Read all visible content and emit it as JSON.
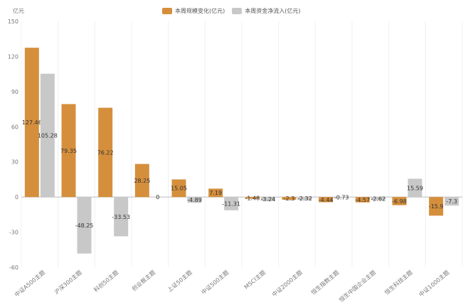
{
  "chart_data": {
    "type": "bar",
    "ylabel": "亿元",
    "ylim": [
      -60,
      150
    ],
    "yticks": [
      150,
      120,
      90,
      60,
      30,
      0,
      -30,
      -60
    ],
    "grid": "vertical",
    "legend_position": "top",
    "categories": [
      "中证A500主题",
      "沪深300主题",
      "科创50主题",
      "创业板主题",
      "上证50主题",
      "中证500主题",
      "MSCI主题",
      "中证2000主题",
      "恒生指数主题",
      "恒生中国企业主题",
      "恒生科技主题",
      "中证1000主题"
    ],
    "series": [
      {
        "name": "本周规模变化(亿元)",
        "color": "#D58F3C",
        "values": [
          127.46,
          79.35,
          76.22,
          28.25,
          15.05,
          7.19,
          -1.48,
          -2.3,
          -4.44,
          -4.57,
          -6.98,
          -15.9
        ]
      },
      {
        "name": "本周资金净流入(亿元)",
        "color": "#C8C8C8",
        "values": [
          105.28,
          -48.25,
          -33.53,
          0,
          -4.89,
          -11.31,
          -3.24,
          -2.32,
          -0.73,
          -2.62,
          15.59,
          -7.3
        ]
      }
    ]
  }
}
